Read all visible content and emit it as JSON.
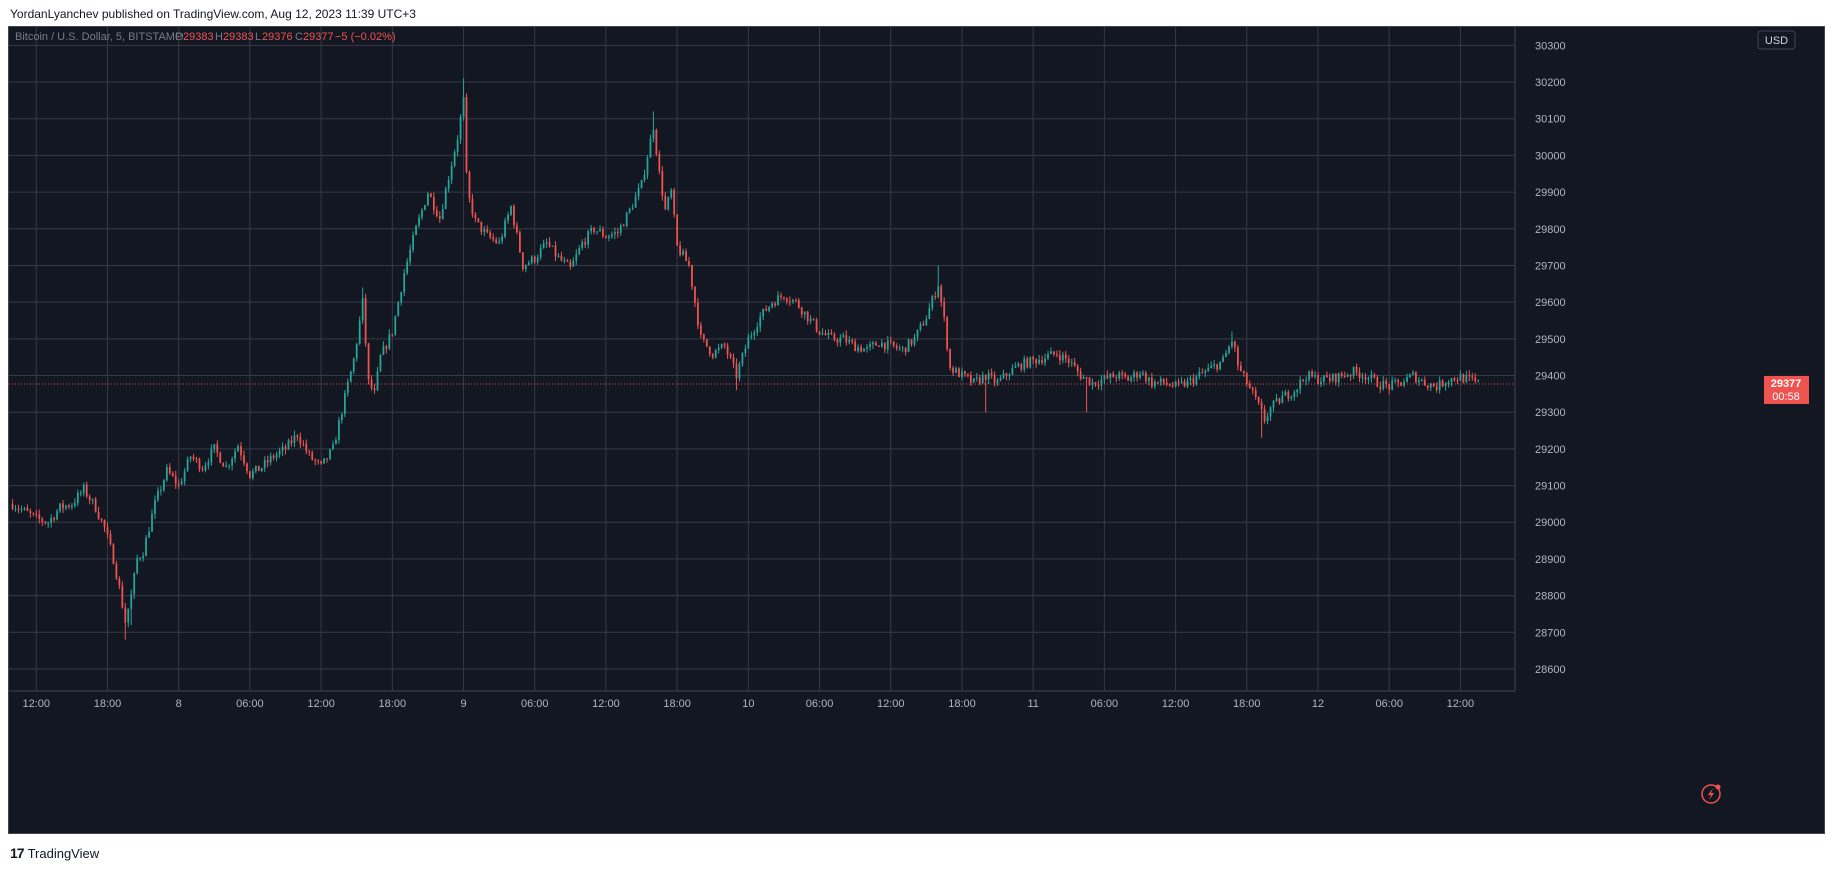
{
  "header": {
    "publisher": "YordanLyanchev published on TradingView.com, Aug 12, 2023 11:39 UTC+3"
  },
  "footer": {
    "logo_mark": "17",
    "logo_text": "TradingView"
  },
  "colors": {
    "background": "#131722",
    "grid": "#363a45",
    "axis_text": "#b2b5be",
    "up": "#26a69a",
    "down": "#ef5350",
    "price_line": "#ef5350"
  },
  "legend": {
    "symbol": "Bitcoin / U.S. Dollar, 5, BITSTAMP",
    "o_label": "O",
    "o_value": "29383",
    "h_label": "H",
    "h_value": "29383",
    "l_label": "L",
    "l_value": "29376",
    "c_label": "C",
    "c_value": "29377",
    "change": "−5 (−0.02%)"
  },
  "currency_button": "USD",
  "price_label": {
    "price": "29377",
    "countdown": "00:58"
  },
  "chart_data": {
    "type": "candlestick",
    "title": "",
    "xlabel": "",
    "ylabel": "",
    "ylim": [
      28540,
      30350
    ],
    "y_ticks": [
      28600,
      28700,
      28800,
      28900,
      29000,
      29100,
      29200,
      29300,
      29400,
      29500,
      29600,
      29700,
      29800,
      29900,
      30000,
      30100,
      30200,
      30300
    ],
    "x_ticks": [
      "12:00",
      "18:00",
      "8",
      "06:00",
      "12:00",
      "18:00",
      "9",
      "06:00",
      "12:00",
      "18:00",
      "10",
      "06:00",
      "12:00",
      "18:00",
      "11",
      "06:00",
      "12:00",
      "18:00",
      "12",
      "06:00",
      "12:00"
    ],
    "x_tick_hours": [
      12,
      18,
      24,
      30,
      36,
      42,
      48,
      54,
      60,
      66,
      72,
      78,
      84,
      90,
      96,
      102,
      108,
      114,
      120,
      126,
      132
    ],
    "x_range_hours": [
      9.7,
      136.6
    ],
    "last_price": 29377,
    "grid": true,
    "close_path": [
      [
        10.0,
        29050
      ],
      [
        11.0,
        29030
      ],
      [
        12.0,
        29010
      ],
      [
        13.0,
        29000
      ],
      [
        14.0,
        29040
      ],
      [
        15.0,
        29050
      ],
      [
        16.0,
        29090
      ],
      [
        17.0,
        29040
      ],
      [
        17.8,
        28980
      ],
      [
        18.5,
        28900
      ],
      [
        19.0,
        28820
      ],
      [
        19.5,
        28730
      ],
      [
        20.0,
        28800
      ],
      [
        20.5,
        28900
      ],
      [
        21.0,
        28920
      ],
      [
        22.0,
        29050
      ],
      [
        23.0,
        29140
      ],
      [
        24.0,
        29100
      ],
      [
        25.0,
        29180
      ],
      [
        26.0,
        29150
      ],
      [
        27.0,
        29200
      ],
      [
        28.0,
        29150
      ],
      [
        29.0,
        29210
      ],
      [
        30.0,
        29130
      ],
      [
        31.0,
        29150
      ],
      [
        32.0,
        29180
      ],
      [
        33.0,
        29200
      ],
      [
        34.0,
        29240
      ],
      [
        35.0,
        29180
      ],
      [
        36.0,
        29150
      ],
      [
        37.0,
        29200
      ],
      [
        38.0,
        29340
      ],
      [
        38.8,
        29450
      ],
      [
        39.5,
        29600
      ],
      [
        40.0,
        29380
      ],
      [
        40.5,
        29350
      ],
      [
        41.0,
        29450
      ],
      [
        42.0,
        29520
      ],
      [
        42.5,
        29600
      ],
      [
        43.0,
        29680
      ],
      [
        44.0,
        29800
      ],
      [
        45.0,
        29900
      ],
      [
        46.0,
        29830
      ],
      [
        46.8,
        29950
      ],
      [
        47.5,
        30050
      ],
      [
        48.0,
        30150
      ],
      [
        48.3,
        29900
      ],
      [
        49.0,
        29820
      ],
      [
        50.0,
        29780
      ],
      [
        51.0,
        29760
      ],
      [
        52.0,
        29860
      ],
      [
        53.0,
        29700
      ],
      [
        54.0,
        29720
      ],
      [
        55.0,
        29760
      ],
      [
        56.0,
        29720
      ],
      [
        57.0,
        29690
      ],
      [
        58.0,
        29760
      ],
      [
        59.0,
        29800
      ],
      [
        60.0,
        29780
      ],
      [
        61.0,
        29790
      ],
      [
        62.0,
        29850
      ],
      [
        63.0,
        29920
      ],
      [
        64.0,
        30080
      ],
      [
        64.5,
        29950
      ],
      [
        65.0,
        29850
      ],
      [
        65.5,
        29900
      ],
      [
        66.0,
        29750
      ],
      [
        67.0,
        29700
      ],
      [
        68.0,
        29500
      ],
      [
        69.0,
        29460
      ],
      [
        70.0,
        29480
      ],
      [
        71.0,
        29400
      ],
      [
        72.0,
        29500
      ],
      [
        73.0,
        29560
      ],
      [
        74.0,
        29600
      ],
      [
        75.0,
        29620
      ],
      [
        76.0,
        29600
      ],
      [
        77.0,
        29560
      ],
      [
        78.0,
        29520
      ],
      [
        79.0,
        29500
      ],
      [
        80.0,
        29500
      ],
      [
        81.0,
        29480
      ],
      [
        82.0,
        29470
      ],
      [
        83.0,
        29490
      ],
      [
        84.0,
        29480
      ],
      [
        85.0,
        29470
      ],
      [
        86.0,
        29500
      ],
      [
        87.0,
        29560
      ],
      [
        88.0,
        29650
      ],
      [
        88.5,
        29550
      ],
      [
        89.0,
        29420
      ],
      [
        90.0,
        29400
      ],
      [
        91.0,
        29380
      ],
      [
        92.0,
        29400
      ],
      [
        93.0,
        29380
      ],
      [
        94.0,
        29410
      ],
      [
        95.0,
        29430
      ],
      [
        96.0,
        29440
      ],
      [
        97.0,
        29450
      ],
      [
        98.0,
        29460
      ],
      [
        99.0,
        29440
      ],
      [
        100.0,
        29400
      ],
      [
        101.0,
        29380
      ],
      [
        102.0,
        29390
      ],
      [
        103.0,
        29400
      ],
      [
        104.0,
        29390
      ],
      [
        105.0,
        29410
      ],
      [
        106.0,
        29380
      ],
      [
        107.0,
        29380
      ],
      [
        108.0,
        29370
      ],
      [
        109.0,
        29380
      ],
      [
        110.0,
        29400
      ],
      [
        111.0,
        29420
      ],
      [
        112.0,
        29440
      ],
      [
        112.8,
        29500
      ],
      [
        113.3,
        29420
      ],
      [
        114.0,
        29380
      ],
      [
        114.8,
        29330
      ],
      [
        115.5,
        29280
      ],
      [
        116.0,
        29310
      ],
      [
        117.0,
        29340
      ],
      [
        118.0,
        29360
      ],
      [
        119.0,
        29400
      ],
      [
        120.0,
        29390
      ],
      [
        121.0,
        29390
      ],
      [
        122.0,
        29400
      ],
      [
        123.0,
        29410
      ],
      [
        124.0,
        29400
      ],
      [
        125.0,
        29380
      ],
      [
        126.0,
        29370
      ],
      [
        127.0,
        29380
      ],
      [
        128.0,
        29400
      ],
      [
        129.0,
        29380
      ],
      [
        130.0,
        29370
      ],
      [
        131.0,
        29390
      ],
      [
        132.0,
        29395
      ],
      [
        133.0,
        29385
      ],
      [
        133.5,
        29377
      ]
    ],
    "spikes": [
      [
        19.5,
        28680
      ],
      [
        48.0,
        30210
      ],
      [
        64.0,
        30120
      ],
      [
        88.0,
        29700
      ],
      [
        115.2,
        29230
      ],
      [
        112.8,
        29520
      ],
      [
        71.0,
        29360
      ],
      [
        100.5,
        29300
      ],
      [
        92.0,
        29300
      ],
      [
        39.5,
        29640
      ],
      [
        20.0,
        28720
      ]
    ],
    "candle_hours": 0.25
  }
}
